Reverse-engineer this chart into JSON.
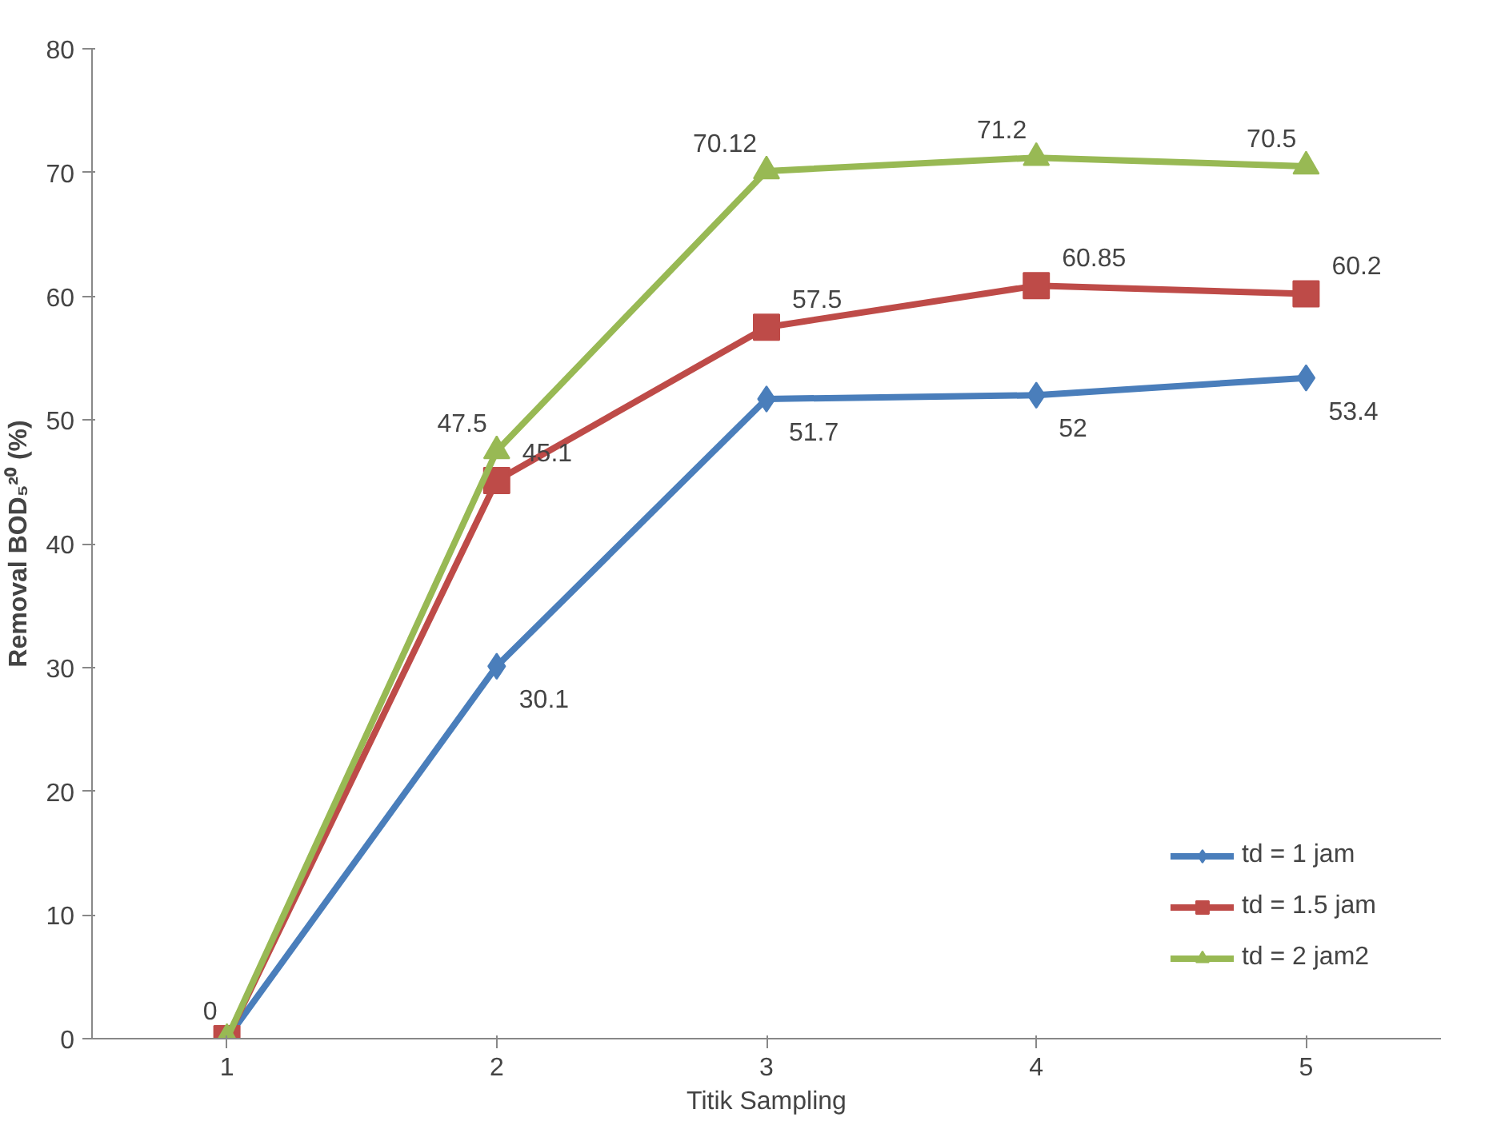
{
  "chart_data": {
    "type": "line",
    "xlabel": "Titik Sampling",
    "ylabel": "Removal BOD₅²⁰ (%)",
    "categories": [
      "1",
      "2",
      "3",
      "4",
      "5"
    ],
    "series": [
      {
        "name": "td = 1 jam",
        "color": "#4a7ebb",
        "marker": "diamond",
        "values": [
          0,
          30.1,
          51.7,
          52,
          53.4
        ],
        "value_labels": [
          null,
          "30.1",
          "51.7",
          "52",
          "53.4"
        ]
      },
      {
        "name": "td = 1.5 jam",
        "color": "#be4b48",
        "marker": "square",
        "values": [
          0,
          45.1,
          57.5,
          60.85,
          60.2
        ],
        "value_labels": [
          null,
          "45.1",
          "57.5",
          "60.85",
          "60.2"
        ]
      },
      {
        "name": "td = 2 jam2",
        "color": "#98b954",
        "marker": "triangle",
        "values": [
          0,
          47.5,
          70.12,
          71.2,
          70.5
        ],
        "value_labels": [
          "0",
          "47.5",
          "70.12",
          "71.2",
          "70.5"
        ]
      }
    ],
    "ylim": [
      0,
      80
    ],
    "yticks": [
      0,
      10,
      20,
      30,
      40,
      50,
      60,
      70,
      80
    ],
    "grid": false,
    "legend": "right",
    "line_style": "solid"
  }
}
